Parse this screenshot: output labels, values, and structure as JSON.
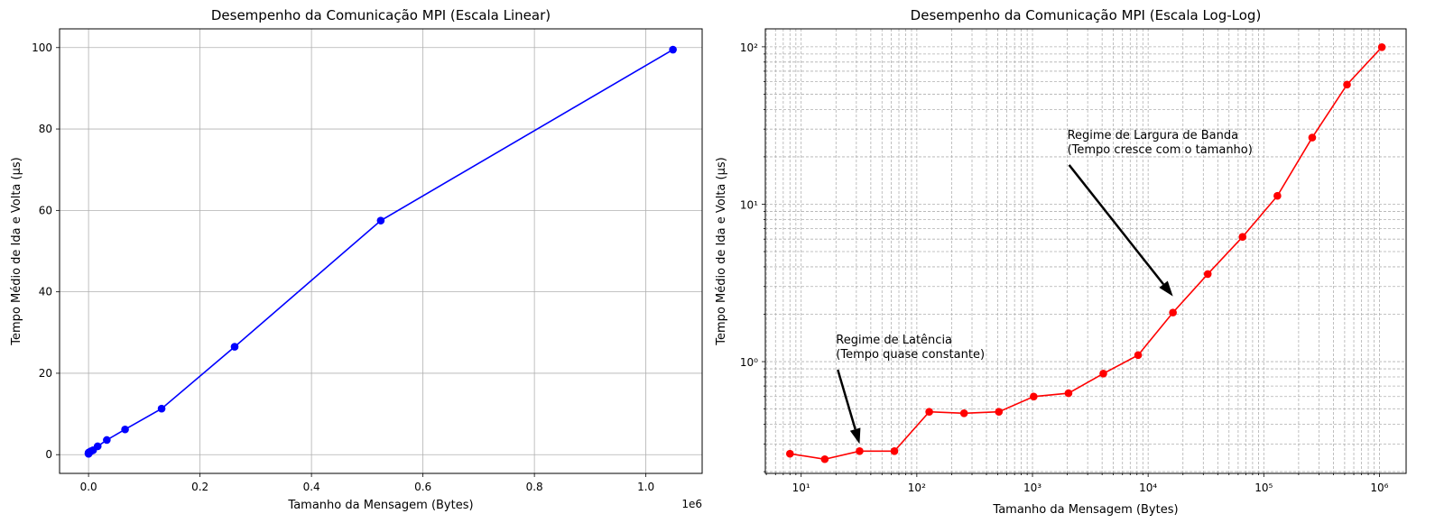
{
  "chart_data": [
    {
      "type": "line",
      "title": "Desempenho da Comunicação MPI (Escala Linear)",
      "xlabel": "Tamanho da Mensagem (Bytes)",
      "ylabel": "Tempo Médio de Ida e Volta (µs)",
      "x_scale": "linear",
      "y_scale": "linear",
      "x_offset_label": "1e6",
      "xlim": [
        -52000,
        1101000
      ],
      "ylim": [
        -4.6,
        104.6
      ],
      "xticks": [
        "0.0",
        "0.2",
        "0.4",
        "0.6",
        "0.8",
        "1.0"
      ],
      "yticks": [
        "0",
        "20",
        "40",
        "60",
        "80",
        "100"
      ],
      "grid": "major",
      "color": "#0000ff",
      "marker": "circle",
      "series": [
        {
          "x": [
            8,
            16,
            32,
            64,
            128,
            256,
            512,
            1024,
            2048,
            4096,
            8192,
            16384,
            32768,
            65536,
            131072,
            262144,
            524288,
            1048576
          ],
          "y": [
            0.26,
            0.24,
            0.27,
            0.27,
            0.48,
            0.47,
            0.48,
            0.6,
            0.63,
            0.84,
            1.1,
            2.05,
            3.6,
            6.2,
            11.3,
            26.5,
            57.5,
            99.5
          ]
        }
      ]
    },
    {
      "type": "line",
      "title": "Desempenho da Comunicação MPI (Escala Log-Log)",
      "xlabel": "Tamanho da Mensagem (Bytes)",
      "ylabel": "Tempo Médio de Ida e Volta (µs)",
      "x_scale": "log",
      "y_scale": "log",
      "xlim": [
        4.9,
        1700000
      ],
      "ylim": [
        0.195,
        130
      ],
      "xticks": [
        "10¹",
        "10²",
        "10³",
        "10⁴",
        "10⁵",
        "10⁶"
      ],
      "yticks": [
        "10⁰",
        "10¹",
        "10²"
      ],
      "grid": "major and minor, dashed",
      "color": "#ff0000",
      "marker": "circle",
      "series": [
        {
          "x": [
            8,
            16,
            32,
            64,
            128,
            256,
            512,
            1024,
            2048,
            4096,
            8192,
            16384,
            32768,
            65536,
            131072,
            262144,
            524288,
            1048576
          ],
          "y": [
            0.26,
            0.24,
            0.27,
            0.27,
            0.48,
            0.47,
            0.48,
            0.6,
            0.63,
            0.84,
            1.1,
            2.05,
            3.6,
            6.2,
            11.3,
            26.5,
            57.5,
            99.5
          ]
        }
      ],
      "annotations": [
        {
          "lines": [
            "Regime de Latência",
            "(Tempo quase constante)"
          ],
          "text_xy": [
            20,
            1.0
          ],
          "arrow_to": [
            32,
            0.3
          ]
        },
        {
          "lines": [
            "Regime de Largura de Banda",
            "(Tempo cresce com o tamanho)"
          ],
          "text_xy": [
            2000,
            20
          ],
          "arrow_to": [
            16384,
            2.6
          ]
        }
      ]
    }
  ]
}
